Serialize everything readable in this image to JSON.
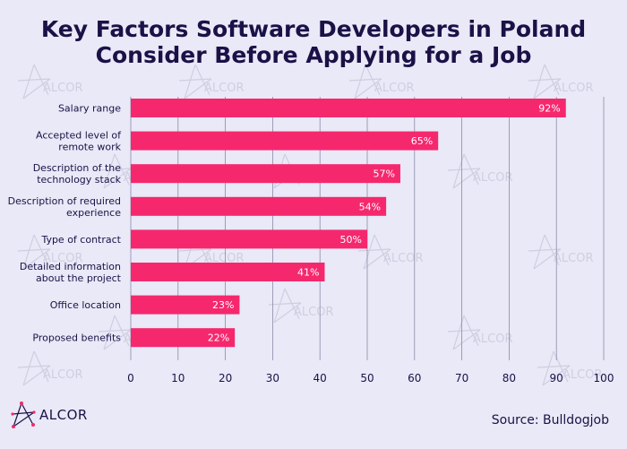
{
  "title_line1": "Key Factors Software Developers in Poland",
  "title_line2": "Consider Before Applying for a Job",
  "brand": "ALCOR",
  "source": "Source: Bulldogjob",
  "colors": {
    "bar": "#f5286e",
    "text": "#1b1147",
    "grid": "#8a8aa8",
    "background": "#e9e9f7"
  },
  "chart_data": {
    "type": "bar",
    "orientation": "horizontal",
    "categories": [
      "Salary range",
      "Accepted level of\nremote work",
      "Description of the\ntechnology stack",
      "Description of required\nexperience",
      "Type of contract",
      "Detailed information\nabout the project",
      "Office location",
      "Proposed benefits"
    ],
    "values": [
      92,
      65,
      57,
      54,
      50,
      41,
      23,
      22
    ],
    "data_labels": [
      "92%",
      "65%",
      "57%",
      "54%",
      "50%",
      "41%",
      "23%",
      "22%"
    ],
    "xlim": [
      0,
      100
    ],
    "xticks": [
      0,
      10,
      20,
      30,
      40,
      50,
      60,
      70,
      80,
      90,
      100
    ],
    "grid": true
  }
}
